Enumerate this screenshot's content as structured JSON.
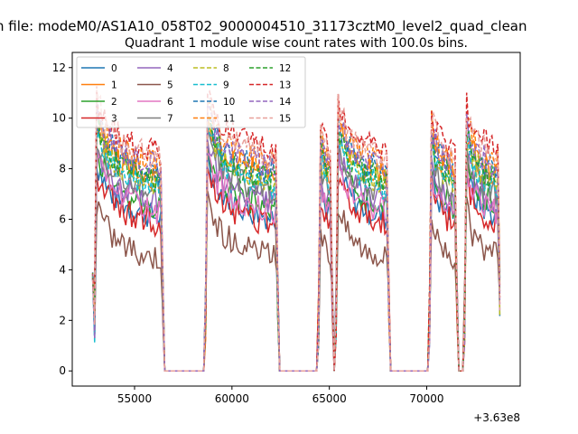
{
  "chart_data": {
    "type": "line",
    "suptitle": "n file: modeM0/AS1A10_058T02_9000004510_31173cztM0_level2_quad_clean",
    "title": "Quadrant 1 module wise count rates with 100.0s bins.",
    "xlabel": "",
    "ylabel": "",
    "x_offset_text": "+3.63e8",
    "xlim": [
      51800,
      74800
    ],
    "ylim": [
      -0.6,
      12.6
    ],
    "x_ticks": [
      55000,
      60000,
      65000,
      70000
    ],
    "x_tick_labels": [
      "55000",
      "60000",
      "65000",
      "70000"
    ],
    "y_ticks": [
      0,
      2,
      4,
      6,
      8,
      10,
      12
    ],
    "y_tick_labels": [
      "0",
      "2",
      "4",
      "6",
      "8",
      "10",
      "12"
    ],
    "grid": false,
    "legend": {
      "placement": "top-left",
      "columns": 4
    },
    "segments": [
      {
        "start": 52900,
        "end": 56500
      },
      {
        "start": 58600,
        "end": 62400
      },
      {
        "start": 64400,
        "end": 65200
      },
      {
        "start": 65300,
        "end": 68100
      },
      {
        "start": 70100,
        "end": 71600
      },
      {
        "start": 71900,
        "end": 73800
      }
    ],
    "series": [
      {
        "name": "0",
        "color": "#1f77b4",
        "dash": false,
        "level": 6.8
      },
      {
        "name": "1",
        "color": "#ff7f0e",
        "dash": false,
        "level": 8.4
      },
      {
        "name": "2",
        "color": "#2ca02c",
        "dash": false,
        "level": 7.2
      },
      {
        "name": "3",
        "color": "#d62728",
        "dash": false,
        "level": 6.5
      },
      {
        "name": "4",
        "color": "#9467bd",
        "dash": false,
        "level": 7.4
      },
      {
        "name": "5",
        "color": "#8c564b",
        "dash": false,
        "level": 5.2
      },
      {
        "name": "6",
        "color": "#e377c2",
        "dash": false,
        "level": 7.0
      },
      {
        "name": "7",
        "color": "#7f7f7f",
        "dash": false,
        "level": 7.8
      },
      {
        "name": "8",
        "color": "#bcbd22",
        "dash": true,
        "level": 8.2
      },
      {
        "name": "9",
        "color": "#17becf",
        "dash": true,
        "level": 8.0
      },
      {
        "name": "10",
        "color": "#1f77b4",
        "dash": true,
        "level": 8.6
      },
      {
        "name": "11",
        "color": "#ff7f0e",
        "dash": true,
        "level": 8.9
      },
      {
        "name": "12",
        "color": "#2ca02c",
        "dash": true,
        "level": 8.3
      },
      {
        "name": "13",
        "color": "#d62728",
        "dash": true,
        "level": 9.4
      },
      {
        "name": "14",
        "color": "#9467bd",
        "dash": true,
        "level": 8.8
      },
      {
        "name": "15",
        "color": "#e8a09a",
        "dash": true,
        "level": 9.2
      }
    ]
  }
}
